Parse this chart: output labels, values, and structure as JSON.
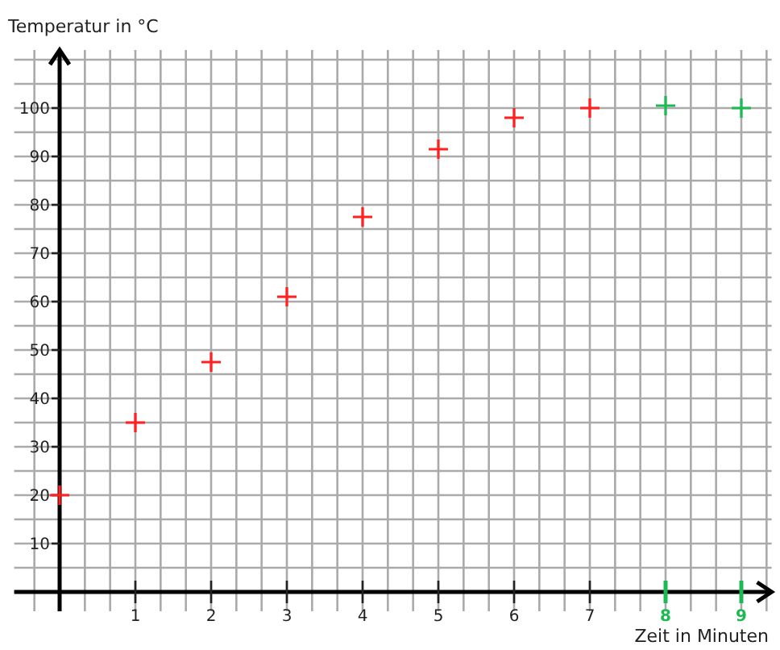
{
  "chart_data": {
    "type": "scatter",
    "xlabel": "Zeit in Minuten",
    "ylabel": "Temperatur in °C",
    "xlim": [
      -0.6,
      9.4
    ],
    "ylim": [
      -4,
      112
    ],
    "xticks": [
      1,
      2,
      3,
      4,
      5,
      6,
      7,
      8,
      9
    ],
    "yticks": [
      10,
      20,
      30,
      40,
      50,
      60,
      70,
      80,
      90,
      100
    ],
    "grid": true,
    "marker": "cross",
    "series": [
      {
        "color": "#ff2020",
        "x": [
          0,
          1,
          2,
          3,
          4,
          5,
          6,
          7
        ],
        "values": [
          20,
          35,
          47.5,
          61,
          77.5,
          91.5,
          98,
          100
        ]
      },
      {
        "color": "#1db954",
        "x": [
          8,
          9
        ],
        "values": [
          100.5,
          100
        ]
      }
    ]
  }
}
